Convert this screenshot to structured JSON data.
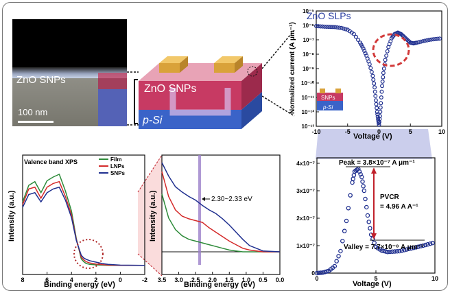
{
  "colors": {
    "film": "#2e8b3a",
    "lnps": "#d42a2a",
    "snps": "#1f2f8f",
    "line_black": "#111111",
    "highlight": "#9b7fc9",
    "pvcr_arrow": "#c0202a",
    "device_blue": "#3a63c8",
    "device_pink": "#c73a63",
    "device_gold": "#d9a23a"
  },
  "sem": {
    "material_label": "ZnO SNPs",
    "scale_label": "100 nm"
  },
  "device": {
    "layer_top_label": "ZnO SNPs",
    "substrate_label": "p-Si"
  },
  "inset": {
    "layer_label": "SNPs",
    "substrate_label": "p-Si"
  },
  "chart_data": [
    {
      "id": "iv_log",
      "type": "scatter",
      "title": "ZnO SLPs",
      "xlabel": "Voltage (V)",
      "ylabel": "Normalized current (A μm⁻¹)",
      "xlim": [
        -10,
        10
      ],
      "ylim_log10": [
        -13,
        -5
      ],
      "x_ticks": [
        "-10",
        "-5",
        "0",
        "5",
        "10"
      ],
      "y_ticks": [
        "10⁻¹³",
        "10⁻¹²",
        "10⁻¹¹",
        "10⁻¹⁰",
        "10⁻⁹",
        "10⁻⁸",
        "10⁻⁷",
        "10⁻⁶",
        "10⁻⁵"
      ],
      "series": [
        {
          "name": "ZnO SLPs",
          "x": [
            -10,
            -9,
            -8,
            -7,
            -6,
            -5,
            -4,
            -3,
            -2.5,
            -2,
            -1.5,
            -1,
            -0.7,
            -0.5,
            -0.3,
            -0.15,
            0,
            0.15,
            0.3,
            0.5,
            0.7,
            1,
            1.5,
            2,
            2.5,
            3,
            3.5,
            4,
            4.5,
            5,
            5.5,
            6,
            7,
            8,
            9,
            10
          ],
          "log_y": [
            -6.05,
            -6.08,
            -6.1,
            -6.12,
            -6.18,
            -6.3,
            -6.6,
            -7.2,
            -7.6,
            -8.1,
            -8.7,
            -9.5,
            -10.3,
            -11.2,
            -12.0,
            -12.5,
            -12.9,
            -12.3,
            -11.4,
            -10.2,
            -9.3,
            -8.4,
            -7.5,
            -6.9,
            -6.6,
            -6.5,
            -6.6,
            -6.8,
            -7.0,
            -7.2,
            -7.25,
            -7.2,
            -7.1,
            -7.0,
            -6.95,
            -6.9
          ]
        }
      ],
      "annotation": "peak-valley region highlighted by dashed circle"
    },
    {
      "id": "xps_full",
      "type": "line",
      "title": "Valence band XPS",
      "xlabel": "Binding energy (eV)",
      "ylabel": "Intensity (a.u.)",
      "xlim": [
        8,
        -2
      ],
      "x_ticks": [
        "8",
        "6",
        "4",
        "2",
        "0",
        "-2"
      ],
      "legend": [
        "Film",
        "LNPs",
        "SNPs"
      ],
      "series": [
        {
          "name": "Film",
          "x": [
            8,
            7.5,
            7,
            6.5,
            6,
            5.5,
            5,
            4.5,
            4,
            3.6,
            3.2,
            3,
            2.8,
            2.5,
            2,
            1.5,
            1,
            0,
            -2
          ],
          "y": [
            0.7,
            0.88,
            0.92,
            0.8,
            0.93,
            0.97,
            1.0,
            0.82,
            0.6,
            0.3,
            0.08,
            0.05,
            0.03,
            0.02,
            0.015,
            0.012,
            0.01,
            0.01,
            0.01
          ]
        },
        {
          "name": "LNPs",
          "x": [
            8,
            7.5,
            7,
            6.5,
            6,
            5.5,
            5,
            4.5,
            4,
            3.6,
            3.2,
            3,
            2.8,
            2.5,
            2,
            1.5,
            1,
            0,
            -2
          ],
          "y": [
            0.67,
            0.84,
            0.86,
            0.74,
            0.86,
            0.9,
            0.92,
            0.76,
            0.56,
            0.29,
            0.1,
            0.07,
            0.05,
            0.035,
            0.025,
            0.018,
            0.013,
            0.01,
            0.01
          ]
        },
        {
          "name": "SNPs",
          "x": [
            8,
            7.5,
            7,
            6.5,
            6,
            5.5,
            5,
            4.5,
            4,
            3.6,
            3.2,
            3,
            2.8,
            2.5,
            2,
            1.5,
            1,
            0,
            -2
          ],
          "y": [
            0.64,
            0.78,
            0.8,
            0.7,
            0.8,
            0.84,
            0.86,
            0.72,
            0.53,
            0.28,
            0.12,
            0.09,
            0.075,
            0.06,
            0.045,
            0.03,
            0.02,
            0.012,
            0.01
          ]
        }
      ],
      "annotation": "dashed circle at 2–3.5 eV, zoomed in adjacent panel"
    },
    {
      "id": "xps_zoom",
      "type": "line",
      "xlabel": "Binding energy (eV)",
      "ylabel": "Intensity (a.u.)",
      "xlim": [
        3.5,
        0.0
      ],
      "x_ticks": [
        "3.5",
        "3.0",
        "2.5",
        "2.0",
        "1.5",
        "1.0",
        "0.5",
        "0.0"
      ],
      "annotation": "2.30~2.33 eV",
      "series": [
        {
          "name": "Film",
          "x": [
            3.5,
            3.3,
            3.1,
            2.9,
            2.7,
            2.5,
            2.3,
            2.1,
            1.9,
            1.7,
            1.5,
            1.3,
            1.1,
            0.9,
            0.5,
            0.0
          ],
          "y": [
            0.65,
            0.38,
            0.25,
            0.18,
            0.14,
            0.12,
            0.1,
            0.08,
            0.06,
            0.04,
            0.02,
            0.01,
            0.0,
            0.0,
            0.0,
            0.0
          ]
        },
        {
          "name": "LNPs",
          "x": [
            3.5,
            3.3,
            3.1,
            2.9,
            2.7,
            2.5,
            2.3,
            2.1,
            1.9,
            1.7,
            1.5,
            1.3,
            1.1,
            0.9,
            0.5,
            0.0
          ],
          "y": [
            0.9,
            0.62,
            0.47,
            0.4,
            0.37,
            0.35,
            0.33,
            0.27,
            0.22,
            0.17,
            0.12,
            0.08,
            0.04,
            0.02,
            0.0,
            0.0
          ]
        },
        {
          "name": "SNPs",
          "x": [
            3.5,
            3.3,
            3.1,
            2.9,
            2.7,
            2.5,
            2.3,
            2.1,
            1.9,
            1.7,
            1.5,
            1.3,
            1.1,
            0.9,
            0.5,
            0.0
          ],
          "y": [
            1.0,
            0.85,
            0.73,
            0.67,
            0.62,
            0.58,
            0.52,
            0.47,
            0.43,
            0.37,
            0.3,
            0.22,
            0.14,
            0.07,
            0.01,
            0.0
          ]
        }
      ]
    },
    {
      "id": "iv_linear",
      "type": "scatter",
      "xlabel": "Voltage (V)",
      "ylabel": "",
      "xlim": [
        0,
        10
      ],
      "ylim": [
        0,
        4.2e-07
      ],
      "x_ticks": [
        "0",
        "5",
        "10"
      ],
      "y_ticks": [
        "0",
        "1x10⁻⁷",
        "2x10⁻⁷",
        "3x10⁻⁷",
        "4x10⁻⁷"
      ],
      "peak_label": "Peak = 3.8×10⁻⁷ A μm⁻¹",
      "valley_label": "Valley = 7.7×10⁻⁸ A μm⁻¹",
      "pvcr_label": "PVCR",
      "pvcr_value": "= 4.96 A A⁻¹",
      "series": [
        {
          "name": "ZnO SLPs",
          "x": [
            0,
            0.5,
            1,
            1.5,
            2,
            2.5,
            3,
            3.2,
            3.5,
            3.8,
            4,
            4.3,
            4.6,
            5,
            5.5,
            6,
            7,
            8,
            9,
            10
          ],
          "y": [
            0,
            2e-09,
            8e-09,
            2.5e-08,
            8e-08,
            1.9e-07,
            3.3e-07,
            3.7e-07,
            3.8e-07,
            3.5e-07,
            3e-07,
            2.1e-07,
            1.4e-07,
            9.5e-08,
            8.2e-08,
            7.7e-08,
            8e-08,
            9e-08,
            1e-07,
            1.12e-07
          ]
        }
      ]
    }
  ]
}
